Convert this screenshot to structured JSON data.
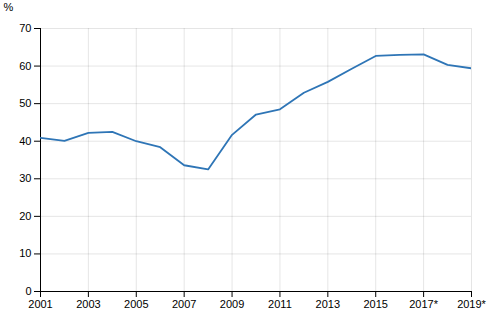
{
  "chart_data": {
    "type": "line",
    "x": [
      2001,
      2002,
      2003,
      2004,
      2005,
      2006,
      2007,
      2008,
      2009,
      2010,
      2011,
      2012,
      2013,
      2014,
      2015,
      2016,
      2017,
      2018,
      2019
    ],
    "values": [
      40.9,
      40.1,
      42.2,
      42.5,
      40.0,
      38.4,
      33.6,
      32.5,
      41.7,
      47.1,
      48.5,
      52.9,
      55.8,
      59.3,
      62.7,
      63.0,
      63.1,
      60.3,
      59.4
    ],
    "color": "#2E75B6",
    "xlim": [
      2001,
      2019
    ],
    "xticks": [
      2001,
      2003,
      2005,
      2007,
      2009,
      2011,
      2013,
      2015,
      {
        "value": 2017,
        "label": "2017*"
      },
      {
        "value": 2019,
        "label": "2019*"
      }
    ],
    "ylim": [
      0,
      70
    ],
    "yticks": [
      0,
      10,
      20,
      30,
      40,
      50,
      60,
      70
    ],
    "ylabel": "%",
    "grid": true
  }
}
